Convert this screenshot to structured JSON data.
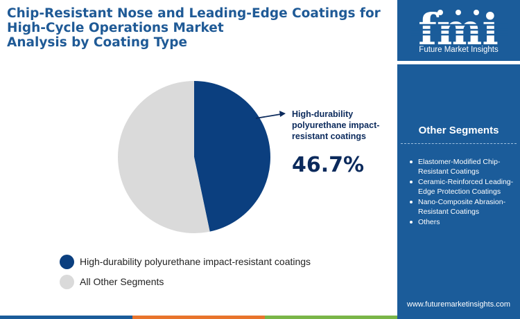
{
  "title_lines": [
    "Chip-Resistant Nose and Leading-Edge Coatings for",
    "High-Cycle Operations Market",
    "Analysis by Coating Type"
  ],
  "brand": {
    "logo_text": "fmi",
    "tagline": "Future Market Insights",
    "website": "www.futuremarketinsights.com"
  },
  "other_segments": {
    "heading": "Other Segments",
    "items": [
      "Elastomer-Modified Chip-Resistant Coatings",
      "Ceramic-Reinforced Leading-Edge Protection Coatings",
      "Nano-Composite Abrasion-Resistant Coatings",
      "Others"
    ]
  },
  "callout": {
    "label_lines": [
      "High-durability",
      "polyurethane impact-",
      "resistant coatings"
    ],
    "value": "46.7%"
  },
  "colors": {
    "primary": "#0b3f7f",
    "other": "#dadada",
    "sidebar": "#1b5c9a",
    "title": "#1f5a96",
    "bottom_bar": [
      "#1b5c9a",
      "#e8742c",
      "#7ab648"
    ]
  },
  "chart_data": {
    "type": "pie",
    "series": [
      {
        "name": "High-durability polyurethane impact-resistant coatings",
        "value": 46.7,
        "color": "#0b3f7f"
      },
      {
        "name": "All Other Segments",
        "value": 53.3,
        "color": "#dadada"
      }
    ],
    "data_labels": [
      "46.7%"
    ],
    "legend_position": "bottom-left",
    "start": "12 o'clock",
    "direction": "clockwise"
  }
}
